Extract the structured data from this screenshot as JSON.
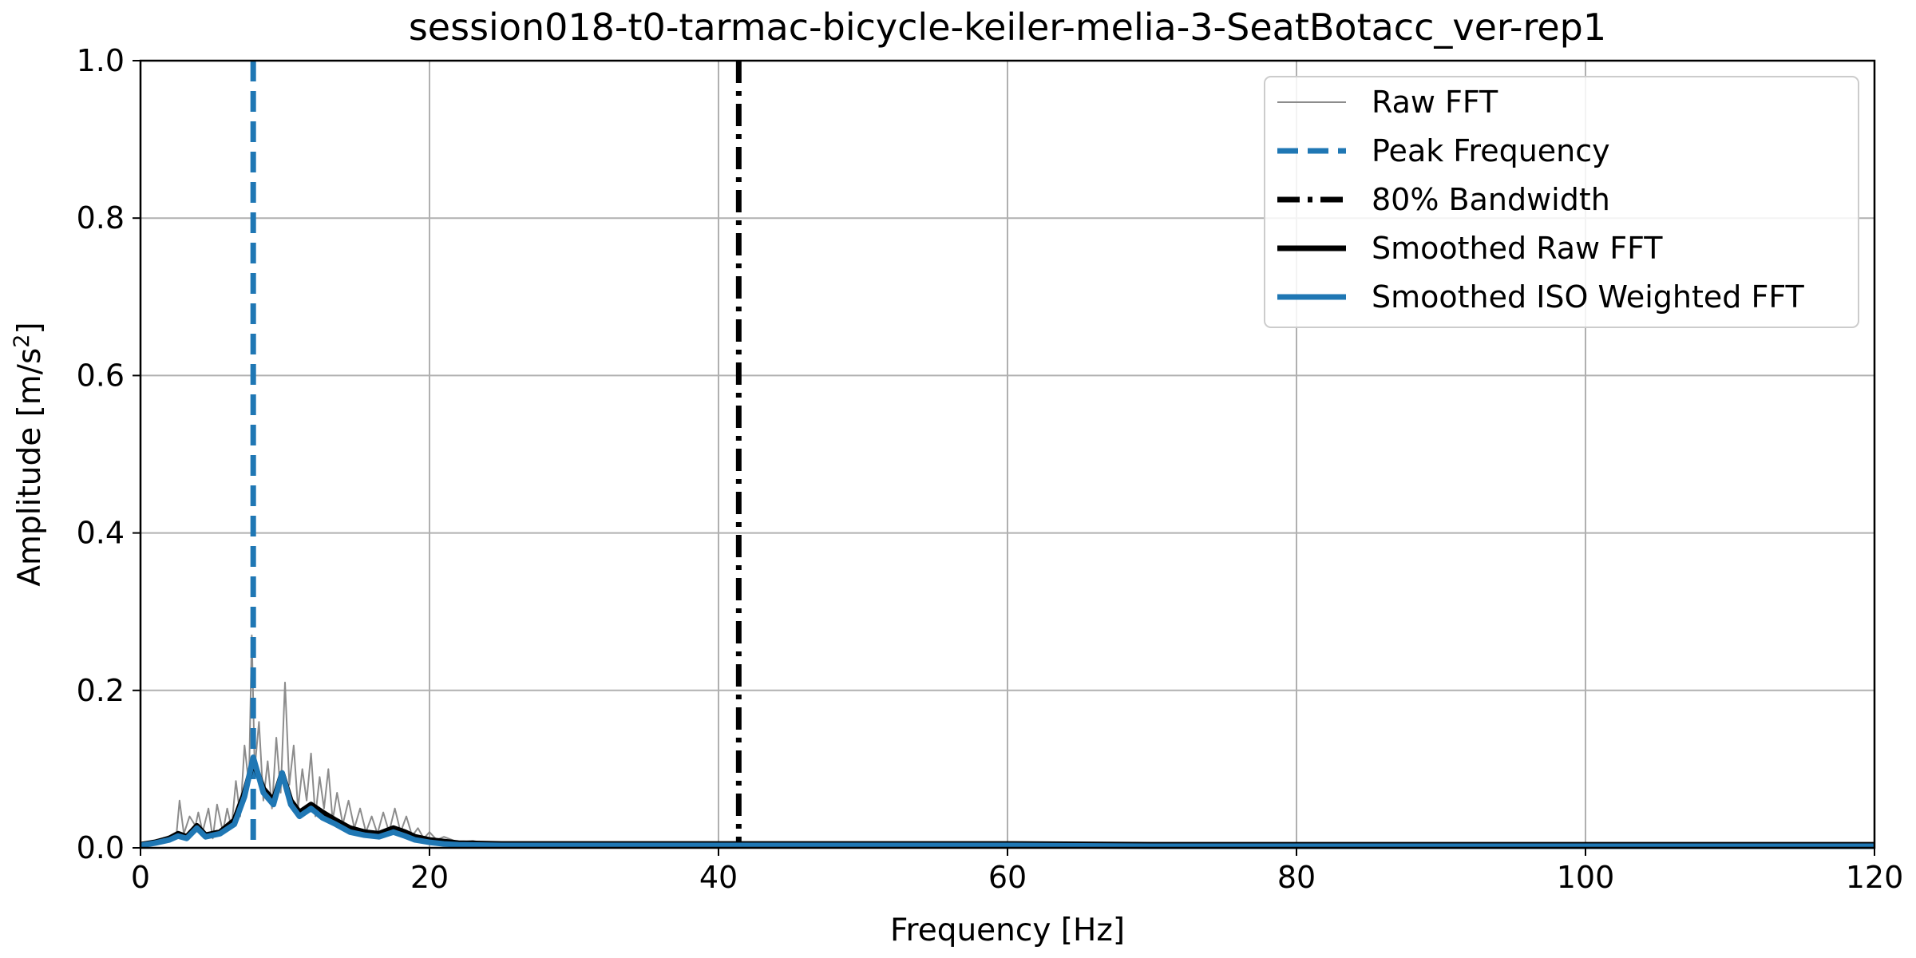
{
  "chart_data": {
    "type": "line",
    "title": "session018-t0-tarmac-bicycle-keiler-melia-3-SeatBotacc_ver-rep1",
    "xlabel": "Frequency [Hz]",
    "ylabel_main": "Amplitude [m/s",
    "ylabel_sup": "2",
    "ylabel_close": "]",
    "xlim": [
      0,
      120
    ],
    "ylim": [
      0,
      1.0
    ],
    "x_ticks": [
      0,
      20,
      40,
      60,
      80,
      100,
      120
    ],
    "x_tick_labels": [
      "0",
      "20",
      "40",
      "60",
      "80",
      "100",
      "120"
    ],
    "y_ticks": [
      0.0,
      0.2,
      0.4,
      0.6,
      0.8,
      1.0
    ],
    "y_tick_labels": [
      "0.0",
      "0.2",
      "0.4",
      "0.6",
      "0.8",
      "1.0"
    ],
    "grid": true,
    "legend_position": "top-right",
    "colors": {
      "raw": "#8c8c8c",
      "peak": "#1f77b4",
      "bandwidth": "#000000",
      "smoothed_raw": "#000000",
      "smoothed_iso": "#1f77b4",
      "grid": "#b0b0b0"
    },
    "series": [
      {
        "name": "Raw FFT",
        "style": "thin-solid",
        "points": [
          [
            0,
            0.003
          ],
          [
            0.5,
            0.006
          ],
          [
            1,
            0.008
          ],
          [
            1.5,
            0.012
          ],
          [
            2,
            0.015
          ],
          [
            2.5,
            0.02
          ],
          [
            2.7,
            0.06
          ],
          [
            3,
            0.018
          ],
          [
            3.4,
            0.04
          ],
          [
            3.8,
            0.028
          ],
          [
            4,
            0.045
          ],
          [
            4.3,
            0.02
          ],
          [
            4.7,
            0.05
          ],
          [
            5,
            0.012
          ],
          [
            5.3,
            0.055
          ],
          [
            5.7,
            0.02
          ],
          [
            6,
            0.05
          ],
          [
            6.3,
            0.025
          ],
          [
            6.6,
            0.085
          ],
          [
            6.9,
            0.04
          ],
          [
            7.2,
            0.13
          ],
          [
            7.5,
            0.08
          ],
          [
            7.7,
            0.27
          ],
          [
            7.9,
            0.1
          ],
          [
            8.2,
            0.16
          ],
          [
            8.5,
            0.06
          ],
          [
            8.8,
            0.11
          ],
          [
            9.1,
            0.05
          ],
          [
            9.4,
            0.14
          ],
          [
            9.7,
            0.07
          ],
          [
            10,
            0.21
          ],
          [
            10.3,
            0.08
          ],
          [
            10.6,
            0.13
          ],
          [
            10.9,
            0.05
          ],
          [
            11.2,
            0.1
          ],
          [
            11.5,
            0.06
          ],
          [
            11.8,
            0.12
          ],
          [
            12.1,
            0.04
          ],
          [
            12.4,
            0.09
          ],
          [
            12.7,
            0.05
          ],
          [
            13,
            0.1
          ],
          [
            13.3,
            0.035
          ],
          [
            13.6,
            0.07
          ],
          [
            14,
            0.03
          ],
          [
            14.4,
            0.06
          ],
          [
            14.8,
            0.025
          ],
          [
            15.2,
            0.05
          ],
          [
            15.6,
            0.02
          ],
          [
            16,
            0.04
          ],
          [
            16.4,
            0.018
          ],
          [
            16.8,
            0.045
          ],
          [
            17.2,
            0.02
          ],
          [
            17.6,
            0.05
          ],
          [
            18,
            0.02
          ],
          [
            18.4,
            0.04
          ],
          [
            18.8,
            0.015
          ],
          [
            19.2,
            0.025
          ],
          [
            19.6,
            0.012
          ],
          [
            20,
            0.02
          ],
          [
            20.5,
            0.01
          ],
          [
            21,
            0.014
          ],
          [
            22,
            0.007
          ],
          [
            23,
            0.009
          ],
          [
            24,
            0.005
          ],
          [
            25,
            0.007
          ],
          [
            27,
            0.004
          ],
          [
            30,
            0.005
          ],
          [
            33,
            0.004
          ],
          [
            36,
            0.005
          ],
          [
            40,
            0.004
          ],
          [
            45,
            0.004
          ],
          [
            50,
            0.004
          ],
          [
            55,
            0.004
          ],
          [
            60,
            0.004
          ],
          [
            70,
            0.003
          ],
          [
            80,
            0.003
          ],
          [
            90,
            0.003
          ],
          [
            100,
            0.003
          ],
          [
            110,
            0.003
          ],
          [
            120,
            0.003
          ]
        ]
      },
      {
        "name": "Peak Frequency",
        "style": "vertical-dashed",
        "x": 7.8
      },
      {
        "name": "80% Bandwidth",
        "style": "vertical-dashdot",
        "x": 41.4
      },
      {
        "name": "Smoothed Raw FFT",
        "style": "thick-solid",
        "points": [
          [
            0,
            0.004
          ],
          [
            1,
            0.007
          ],
          [
            2,
            0.012
          ],
          [
            2.6,
            0.018
          ],
          [
            3.2,
            0.014
          ],
          [
            3.9,
            0.028
          ],
          [
            4.5,
            0.016
          ],
          [
            5.5,
            0.02
          ],
          [
            6.5,
            0.035
          ],
          [
            7.2,
            0.07
          ],
          [
            7.8,
            0.11
          ],
          [
            8.5,
            0.075
          ],
          [
            9.2,
            0.06
          ],
          [
            9.8,
            0.095
          ],
          [
            10.4,
            0.06
          ],
          [
            11,
            0.045
          ],
          [
            11.8,
            0.055
          ],
          [
            12.6,
            0.045
          ],
          [
            13.5,
            0.035
          ],
          [
            14.5,
            0.025
          ],
          [
            15.5,
            0.02
          ],
          [
            16.5,
            0.018
          ],
          [
            17.5,
            0.025
          ],
          [
            18.3,
            0.02
          ],
          [
            19,
            0.014
          ],
          [
            20,
            0.01
          ],
          [
            21,
            0.008
          ],
          [
            22,
            0.006
          ],
          [
            25,
            0.005
          ],
          [
            30,
            0.005
          ],
          [
            40,
            0.005
          ],
          [
            50,
            0.005
          ],
          [
            60,
            0.005
          ],
          [
            70,
            0.004
          ],
          [
            80,
            0.004
          ],
          [
            90,
            0.004
          ],
          [
            100,
            0.004
          ],
          [
            110,
            0.004
          ],
          [
            120,
            0.004
          ]
        ]
      },
      {
        "name": "Smoothed ISO Weighted FFT",
        "style": "thick-solid",
        "points": [
          [
            0,
            0.003
          ],
          [
            1,
            0.006
          ],
          [
            2,
            0.01
          ],
          [
            2.6,
            0.015
          ],
          [
            3.2,
            0.012
          ],
          [
            3.9,
            0.025
          ],
          [
            4.5,
            0.014
          ],
          [
            5.5,
            0.018
          ],
          [
            6.5,
            0.03
          ],
          [
            7.2,
            0.065
          ],
          [
            7.8,
            0.115
          ],
          [
            8.5,
            0.07
          ],
          [
            9.2,
            0.055
          ],
          [
            9.8,
            0.095
          ],
          [
            10.4,
            0.055
          ],
          [
            11,
            0.04
          ],
          [
            11.8,
            0.05
          ],
          [
            12.6,
            0.038
          ],
          [
            13.5,
            0.03
          ],
          [
            14.5,
            0.02
          ],
          [
            15.5,
            0.016
          ],
          [
            16.5,
            0.014
          ],
          [
            17.5,
            0.02
          ],
          [
            18.3,
            0.015
          ],
          [
            19,
            0.01
          ],
          [
            20,
            0.007
          ],
          [
            21,
            0.005
          ],
          [
            22,
            0.004
          ],
          [
            25,
            0.003
          ],
          [
            30,
            0.003
          ],
          [
            40,
            0.003
          ],
          [
            50,
            0.003
          ],
          [
            60,
            0.003
          ],
          [
            70,
            0.002
          ],
          [
            80,
            0.002
          ],
          [
            90,
            0.002
          ],
          [
            100,
            0.002
          ],
          [
            110,
            0.002
          ],
          [
            120,
            0.002
          ]
        ]
      }
    ]
  }
}
